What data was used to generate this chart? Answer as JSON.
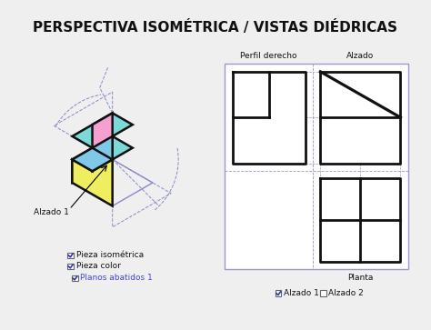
{
  "title": "PERSPECTIVA ISOMÉTRICA / VISTAS DIÉDRICAS",
  "title_fontsize": 11,
  "bg_color": "#efefef",
  "iso_hex_color": "#8888cc",
  "iso_dashed_color": "#8888cc",
  "face_top_color": "#7dd8d8",
  "face_left_color": "#f5a0d0",
  "face_right_color": "#eeee60",
  "face_inner_color": "#80c8e8",
  "face_edge_color": "#111111",
  "face_lw": 1.8,
  "views_border_color": "#9999cc",
  "views_border_lw": 1.0,
  "view_line_color": "#111111",
  "view_line_lw": 2.0,
  "dashed_guide_color": "#9999bb",
  "label_color": "#111111",
  "perfil_label": "Perfil derecho",
  "alzado_label": "Alzado",
  "planta_label": "Planta",
  "alzado1_label": "Alzado 1",
  "pieza_iso_label": "Pieza isométrica",
  "pieza_color_label": "Pieza color",
  "planos_label": "Planos abatidos 1",
  "planos_label_color": "#4444dd",
  "alzado1_cb_label": "Alzado 1",
  "alzado2_cb_label": "Alzado 2"
}
